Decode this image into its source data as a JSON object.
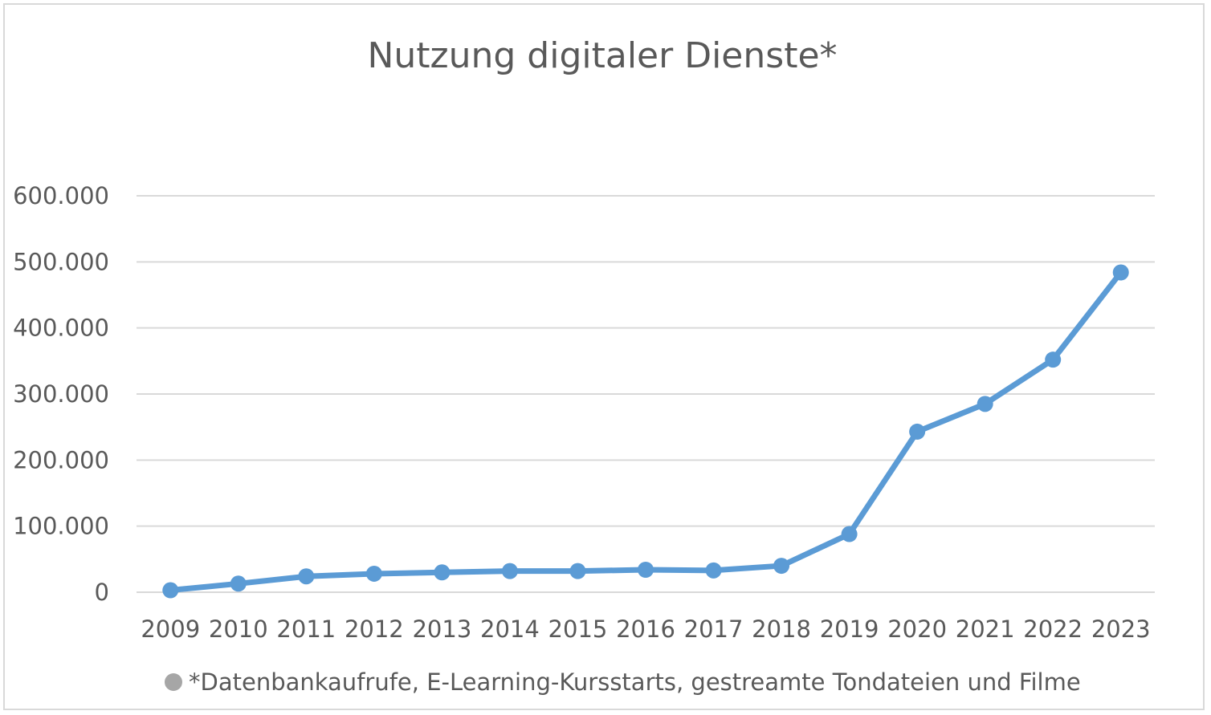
{
  "chart_data": {
    "type": "line",
    "title": "Nutzung digitaler Dienste*",
    "xlabel": "",
    "ylabel": "",
    "ylim": [
      0,
      600000
    ],
    "y_ticks": [
      0,
      100000,
      200000,
      300000,
      400000,
      500000,
      600000
    ],
    "y_tick_labels": [
      "0",
      "100.000",
      "200.000",
      "300.000",
      "400.000",
      "500.000",
      "600.000"
    ],
    "grid": true,
    "legend_position": "bottom",
    "categories": [
      "2009",
      "2010",
      "2011",
      "2012",
      "2013",
      "2014",
      "2015",
      "2016",
      "2017",
      "2018",
      "2019",
      "2020",
      "2021",
      "2022",
      "2023"
    ],
    "series": [
      {
        "name": "*Datenbankaufrufe, E-Learning-Kursstarts, gestreamte Tondateien und Filme",
        "color": "#5b9bd5",
        "values": [
          3000,
          13000,
          24000,
          28000,
          30000,
          32000,
          32000,
          34000,
          33000,
          40000,
          88000,
          243000,
          285000,
          352000,
          484000
        ]
      }
    ],
    "legend_marker_color": "#a6a6a6"
  }
}
